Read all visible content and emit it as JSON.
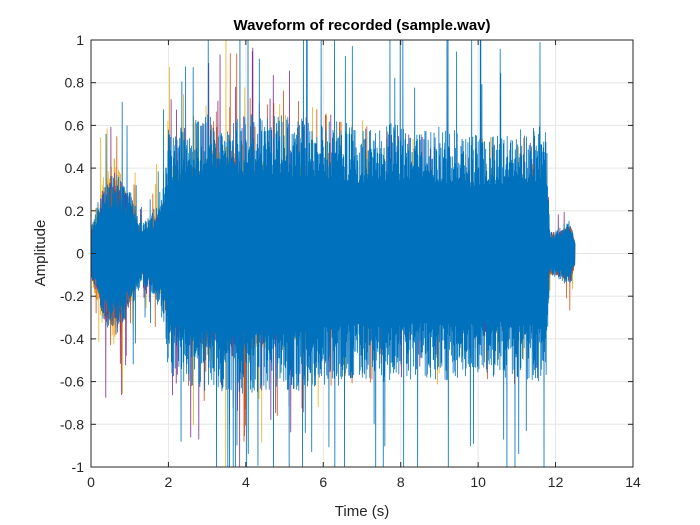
{
  "chart_data": {
    "type": "line",
    "title": "Waveform of recorded (sample.wav)",
    "xlabel": "Time (s)",
    "ylabel": "Amplitude",
    "xlim": [
      0,
      14
    ],
    "ylim": [
      -1,
      1
    ],
    "xticks": [
      0,
      2,
      4,
      6,
      8,
      10,
      12,
      14
    ],
    "yticks": [
      -1,
      -0.8,
      -0.6,
      -0.4,
      -0.2,
      0,
      0.2,
      0.4,
      0.6,
      0.8,
      1
    ],
    "xtick_labels": [
      "0",
      "2",
      "4",
      "6",
      "8",
      "10",
      "12",
      "14"
    ],
    "ytick_labels": [
      "-1",
      "-0.8",
      "-0.6",
      "-0.4",
      "-0.2",
      "0",
      "0.2",
      "0.4",
      "0.6",
      "0.8",
      "1"
    ],
    "grid": true,
    "colors": {
      "series": [
        "#EDB120",
        "#7E2F8E",
        "#D95319",
        "#0072BD"
      ],
      "grid": "#e6e6e6",
      "axes": "#262626"
    },
    "series": [
      {
        "color_index": 0,
        "envelope_time": [
          0.0,
          0.3,
          0.6,
          1.0,
          1.3,
          1.6,
          1.9,
          2.0,
          2.5,
          3.0,
          3.5,
          4.0,
          4.5,
          5.0,
          5.5,
          6.0,
          6.5,
          7.0,
          7.5,
          8.0,
          8.5,
          9.0,
          9.5,
          10.0,
          10.5,
          11.0,
          11.5,
          11.75,
          11.85,
          12.0,
          12.2,
          12.4,
          12.5
        ],
        "envelope_amp": [
          0.12,
          0.35,
          0.45,
          0.28,
          0.12,
          0.18,
          0.28,
          0.42,
          0.45,
          0.5,
          0.52,
          0.52,
          0.45,
          0.45,
          0.42,
          0.38,
          0.32,
          0.3,
          0.26,
          0.28,
          0.26,
          0.3,
          0.24,
          0.28,
          0.26,
          0.28,
          0.26,
          0.24,
          0.1,
          0.1,
          0.12,
          0.14,
          0.05
        ]
      },
      {
        "color_index": 1,
        "envelope_time": [
          0.0,
          0.3,
          0.6,
          1.0,
          1.3,
          1.6,
          1.9,
          2.0,
          2.5,
          3.0,
          3.5,
          4.0,
          4.5,
          5.0,
          5.5,
          6.0,
          6.5,
          7.0,
          7.5,
          8.0,
          8.5,
          9.0,
          9.5,
          10.0,
          10.5,
          11.0,
          11.5,
          11.75,
          11.85,
          12.0,
          12.2,
          12.4,
          12.5
        ],
        "envelope_amp": [
          0.1,
          0.3,
          0.4,
          0.25,
          0.1,
          0.15,
          0.25,
          0.38,
          0.42,
          0.45,
          0.48,
          0.48,
          0.42,
          0.42,
          0.4,
          0.35,
          0.3,
          0.28,
          0.26,
          0.28,
          0.26,
          0.28,
          0.24,
          0.26,
          0.26,
          0.28,
          0.26,
          0.24,
          0.1,
          0.1,
          0.12,
          0.14,
          0.05
        ]
      },
      {
        "color_index": 2,
        "envelope_time": [
          0.0,
          0.3,
          0.6,
          1.0,
          1.3,
          1.6,
          1.9,
          2.0,
          2.5,
          3.0,
          3.5,
          4.0,
          4.5,
          5.0,
          5.5,
          6.0,
          6.5,
          7.0,
          7.5,
          8.0,
          8.5,
          9.0,
          9.5,
          10.0,
          10.5,
          11.0,
          11.5,
          11.75,
          11.85,
          12.0,
          12.2,
          12.4,
          12.5
        ],
        "envelope_amp": [
          0.08,
          0.25,
          0.35,
          0.22,
          0.1,
          0.15,
          0.22,
          0.35,
          0.4,
          0.42,
          0.45,
          0.45,
          0.4,
          0.4,
          0.38,
          0.35,
          0.3,
          0.3,
          0.28,
          0.3,
          0.28,
          0.3,
          0.26,
          0.28,
          0.28,
          0.3,
          0.28,
          0.26,
          0.1,
          0.1,
          0.12,
          0.14,
          0.05
        ]
      },
      {
        "color_index": 3,
        "envelope_time": [
          0.0,
          0.3,
          0.6,
          1.0,
          1.3,
          1.6,
          1.9,
          2.0,
          2.5,
          3.0,
          3.5,
          4.0,
          4.5,
          5.0,
          5.5,
          6.0,
          6.5,
          7.0,
          7.5,
          8.0,
          8.5,
          9.0,
          9.5,
          10.0,
          10.5,
          11.0,
          11.5,
          11.75,
          11.85,
          12.0,
          12.2,
          12.4,
          12.5
        ],
        "envelope_amp": [
          0.12,
          0.32,
          0.4,
          0.3,
          0.14,
          0.2,
          0.35,
          0.58,
          0.62,
          0.65,
          0.66,
          0.66,
          0.64,
          0.65,
          0.64,
          0.62,
          0.62,
          0.58,
          0.62,
          0.6,
          0.58,
          0.6,
          0.58,
          0.56,
          0.58,
          0.58,
          0.6,
          0.62,
          0.1,
          0.12,
          0.14,
          0.16,
          0.06
        ]
      }
    ]
  }
}
